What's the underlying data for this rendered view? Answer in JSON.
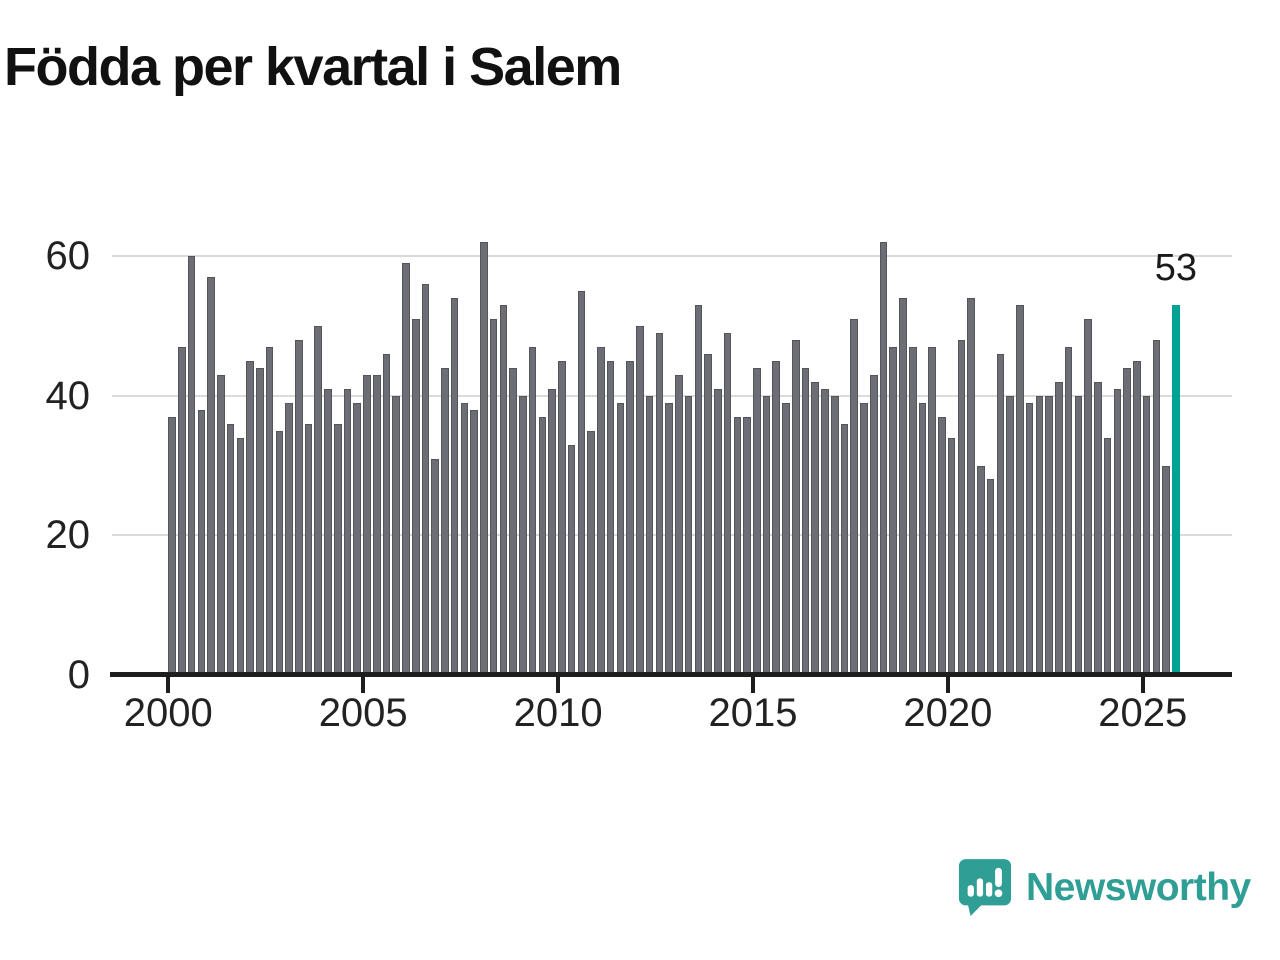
{
  "title": "Födda per kvartal i Salem",
  "chart_data": {
    "type": "bar",
    "frequency": "quarterly",
    "start_year": 2000,
    "series": [
      {
        "name": "Födda per kvartal",
        "values": [
          37,
          47,
          60,
          38,
          57,
          43,
          36,
          34,
          45,
          44,
          47,
          35,
          39,
          48,
          36,
          50,
          41,
          36,
          41,
          39,
          43,
          43,
          46,
          40,
          59,
          51,
          56,
          31,
          44,
          54,
          39,
          38,
          62,
          51,
          53,
          44,
          40,
          47,
          37,
          41,
          45,
          33,
          55,
          35,
          47,
          45,
          39,
          45,
          50,
          40,
          49,
          39,
          43,
          40,
          53,
          46,
          41,
          49,
          37,
          37,
          44,
          40,
          45,
          39,
          48,
          44,
          42,
          41,
          40,
          36,
          51,
          39,
          43,
          62,
          47,
          54,
          47,
          39,
          47,
          37,
          34,
          48,
          54,
          30,
          28,
          46,
          40,
          53,
          39,
          40,
          40,
          42,
          47,
          40,
          51,
          42,
          34,
          41,
          44,
          45,
          40,
          48,
          30,
          53
        ]
      }
    ],
    "last_point_label": "53",
    "y_ticks": [
      0,
      20,
      40,
      60
    ],
    "x_ticks": [
      2000,
      2005,
      2010,
      2015,
      2020,
      2025
    ],
    "ylim": [
      0,
      65
    ],
    "grid": true,
    "legend": "none",
    "bar_color": "#6d6d75",
    "bar_border_color": "#54545b",
    "highlight_color": "#00a294",
    "axis_color": "#1e1e1e",
    "label_color": "#222222"
  },
  "footer": {
    "brand": "Newsworthy",
    "brand_color": "#2f9e94",
    "logo_icon": "speech-bubble-bar-chart-icon"
  }
}
